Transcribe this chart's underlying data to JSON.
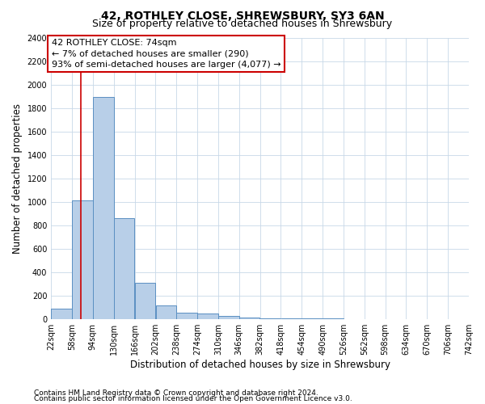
{
  "title": "42, ROTHLEY CLOSE, SHREWSBURY, SY3 6AN",
  "subtitle": "Size of property relative to detached houses in Shrewsbury",
  "xlabel": "Distribution of detached houses by size in Shrewsbury",
  "ylabel": "Number of detached properties",
  "bin_edges": [
    22,
    58,
    94,
    130,
    166,
    202,
    238,
    274,
    310,
    346,
    382,
    418,
    454,
    490,
    526,
    562,
    598,
    634,
    670,
    706,
    742
  ],
  "bar_heights": [
    85,
    1010,
    1890,
    860,
    310,
    115,
    55,
    45,
    25,
    15,
    8,
    5,
    3,
    2,
    1,
    1,
    1,
    0,
    0,
    0
  ],
  "bar_color": "#b8cfe8",
  "bar_edge_color": "#5a8fc2",
  "property_size": 74,
  "red_line_color": "#cc0000",
  "annotation_text": "42 ROTHLEY CLOSE: 74sqm\n← 7% of detached houses are smaller (290)\n93% of semi-detached houses are larger (4,077) →",
  "annotation_box_color": "#cc0000",
  "ylim": [
    0,
    2400
  ],
  "yticks": [
    0,
    200,
    400,
    600,
    800,
    1000,
    1200,
    1400,
    1600,
    1800,
    2000,
    2200,
    2400
  ],
  "footnote1": "Contains HM Land Registry data © Crown copyright and database right 2024.",
  "footnote2": "Contains public sector information licensed under the Open Government Licence v3.0.",
  "background_color": "#ffffff",
  "grid_color": "#c8d8e8",
  "title_fontsize": 10,
  "subtitle_fontsize": 9,
  "axis_label_fontsize": 8.5,
  "tick_fontsize": 7,
  "annotation_fontsize": 8,
  "footnote_fontsize": 6.5
}
